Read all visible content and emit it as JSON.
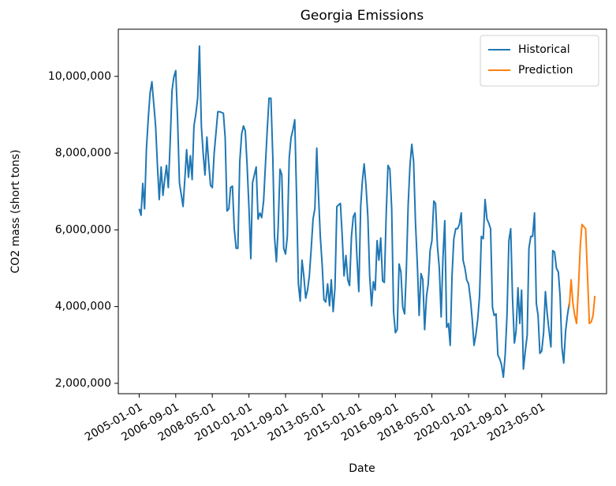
{
  "chart_data": {
    "type": "line",
    "title": "Georgia Emissions",
    "x_label": "Date",
    "y_label": "CO2 mass (short tons)",
    "xlim": [
      "2004-01-20",
      "2026-04-13"
    ],
    "xticks": [
      "2005-01-01",
      "2006-09-01",
      "2008-05-01",
      "2010-01-01",
      "2011-09-01",
      "2013-05-01",
      "2015-01-01",
      "2016-09-01",
      "2018-05-01",
      "2020-01-01",
      "2021-09-01",
      "2023-05-01"
    ],
    "ylim": [
      1730000,
      11230000
    ],
    "yticks": [
      {
        "value": 2000000,
        "label": "2,000,000"
      },
      {
        "value": 4000000,
        "label": "4,000,000"
      },
      {
        "value": 6000000,
        "label": "6,000,000"
      },
      {
        "value": 8000000,
        "label": "8,000,000"
      },
      {
        "value": 10000000,
        "label": "10,000,000"
      }
    ],
    "grid": false,
    "legend": "upper right",
    "series": [
      {
        "name": "Historical",
        "color": "#1f77b4",
        "x": [
          "2005-01-01",
          "2005-02-01",
          "2005-03-01",
          "2005-04-01",
          "2005-05-01",
          "2005-06-01",
          "2005-07-01",
          "2005-08-01",
          "2005-10-01",
          "2005-11-01",
          "2005-12-01",
          "2006-01-01",
          "2006-02-01",
          "2006-03-01",
          "2006-04-01",
          "2006-05-01",
          "2006-06-01",
          "2006-07-01",
          "2006-08-01",
          "2006-09-01",
          "2006-10-01",
          "2006-11-01",
          "2007-01-01",
          "2007-02-01",
          "2007-03-01",
          "2007-04-01",
          "2007-05-01",
          "2007-06-01",
          "2007-07-01",
          "2007-08-01",
          "2007-09-01",
          "2007-10-01",
          "2007-11-01",
          "2007-12-01",
          "2008-01-01",
          "2008-02-01",
          "2008-03-01",
          "2008-04-01",
          "2008-05-01",
          "2008-06-01",
          "2008-08-01",
          "2008-09-01",
          "2008-11-01",
          "2008-12-01",
          "2009-01-01",
          "2009-02-01",
          "2009-03-01",
          "2009-04-01",
          "2009-05-01",
          "2009-06-01",
          "2009-07-01",
          "2009-08-01",
          "2009-09-01",
          "2009-10-01",
          "2009-11-01",
          "2009-12-01",
          "2010-01-01",
          "2010-02-01",
          "2010-03-01",
          "2010-05-01",
          "2010-06-01",
          "2010-07-01",
          "2010-08-01",
          "2010-09-01",
          "2010-10-01",
          "2010-11-01",
          "2010-12-01",
          "2011-01-01",
          "2011-02-01",
          "2011-03-01",
          "2011-04-01",
          "2011-05-01",
          "2011-06-01",
          "2011-07-01",
          "2011-08-01",
          "2011-09-01",
          "2011-10-01",
          "2011-11-01",
          "2011-12-01",
          "2012-01-01",
          "2012-02-01",
          "2012-03-01",
          "2012-04-01",
          "2012-05-01",
          "2012-06-01",
          "2012-07-01",
          "2012-08-01",
          "2012-09-01",
          "2012-10-01",
          "2012-11-01",
          "2012-12-01",
          "2013-01-01",
          "2013-02-01",
          "2013-03-01",
          "2013-04-01",
          "2013-05-01",
          "2013-06-01",
          "2013-07-01",
          "2013-08-01",
          "2013-09-01",
          "2013-10-01",
          "2013-11-01",
          "2013-12-01",
          "2014-01-01",
          "2014-02-01",
          "2014-03-01",
          "2014-04-01",
          "2014-05-01",
          "2014-06-01",
          "2014-07-01",
          "2014-08-01",
          "2014-09-01",
          "2014-10-01",
          "2014-11-01",
          "2014-12-01",
          "2015-01-01",
          "2015-02-01",
          "2015-03-01",
          "2015-04-01",
          "2015-05-01",
          "2015-06-01",
          "2015-07-01",
          "2015-08-01",
          "2015-09-01",
          "2015-10-01",
          "2015-11-01",
          "2015-12-01",
          "2016-01-01",
          "2016-02-01",
          "2016-03-01",
          "2016-04-01",
          "2016-05-01",
          "2016-06-01",
          "2016-07-01",
          "2016-08-01",
          "2016-09-01",
          "2016-10-01",
          "2016-11-01",
          "2016-12-01",
          "2017-01-01",
          "2017-02-01",
          "2017-03-01",
          "2017-04-01",
          "2017-05-01",
          "2017-06-01",
          "2017-07-01",
          "2017-08-01",
          "2017-09-01",
          "2017-10-01",
          "2017-11-01",
          "2017-12-01",
          "2018-01-01",
          "2018-02-01",
          "2018-03-01",
          "2018-04-01",
          "2018-05-01",
          "2018-06-01",
          "2018-07-01",
          "2018-08-01",
          "2018-09-01",
          "2018-10-01",
          "2018-11-01",
          "2018-12-01",
          "2019-01-01",
          "2019-02-01",
          "2019-03-01",
          "2019-04-01",
          "2019-05-01",
          "2019-06-01",
          "2019-07-01",
          "2019-08-01",
          "2019-09-01",
          "2019-10-01",
          "2019-11-01",
          "2019-12-01",
          "2020-01-01",
          "2020-02-01",
          "2020-03-01",
          "2020-04-01",
          "2020-05-01",
          "2020-06-01",
          "2020-07-01",
          "2020-08-01",
          "2020-09-01",
          "2020-10-01",
          "2020-11-01",
          "2020-12-01",
          "2021-01-01",
          "2021-02-01",
          "2021-03-01",
          "2021-04-01",
          "2021-05-01",
          "2021-06-01",
          "2021-07-01",
          "2021-08-01",
          "2021-09-01",
          "2021-10-01",
          "2021-11-01",
          "2021-12-01",
          "2022-01-01",
          "2022-02-01",
          "2022-03-01",
          "2022-04-01",
          "2022-05-01",
          "2022-06-01",
          "2022-07-01",
          "2022-08-01",
          "2022-09-01",
          "2022-10-01",
          "2022-11-01",
          "2022-12-01",
          "2023-01-01",
          "2023-02-01",
          "2023-03-01",
          "2023-04-01",
          "2023-05-01",
          "2023-06-01",
          "2023-07-01",
          "2023-08-01",
          "2023-09-01",
          "2023-10-01",
          "2023-11-01",
          "2023-12-01",
          "2024-01-01",
          "2024-02-01",
          "2024-03-01",
          "2024-04-01",
          "2024-05-01",
          "2024-06-01",
          "2024-07-01",
          "2024-08-01"
        ],
        "values": [
          6550000,
          6380000,
          7210000,
          6550000,
          8090000,
          8910000,
          9570000,
          9860000,
          8710000,
          7680000,
          6790000,
          7640000,
          6900000,
          7310000,
          7680000,
          7100000,
          8300000,
          9630000,
          9980000,
          10150000,
          8910000,
          7230000,
          6610000,
          7370000,
          8090000,
          7370000,
          7930000,
          7310000,
          8710000,
          9020000,
          9430000,
          10790000,
          8710000,
          7990000,
          7430000,
          8420000,
          7780000,
          7160000,
          7100000,
          7990000,
          9080000,
          9080000,
          9040000,
          8400000,
          6490000,
          6550000,
          7100000,
          7140000,
          6030000,
          5520000,
          5520000,
          7780000,
          8500000,
          8710000,
          8580000,
          7680000,
          6550000,
          5250000,
          7230000,
          7640000,
          6280000,
          6440000,
          6320000,
          6750000,
          7680000,
          8600000,
          9430000,
          9430000,
          7880000,
          5830000,
          5170000,
          6030000,
          7580000,
          7430000,
          5520000,
          5370000,
          5830000,
          7880000,
          8400000,
          8600000,
          8870000,
          6960000,
          4590000,
          4140000,
          5210000,
          4800000,
          4220000,
          4430000,
          4800000,
          5520000,
          6280000,
          6550000,
          8130000,
          6960000,
          5830000,
          5110000,
          4180000,
          4120000,
          4590000,
          4020000,
          4700000,
          3870000,
          4490000,
          6610000,
          6650000,
          6690000,
          5830000,
          4800000,
          5330000,
          4700000,
          4550000,
          5830000,
          6340000,
          6440000,
          5310000,
          4390000,
          6610000,
          7270000,
          7720000,
          7160000,
          6340000,
          4800000,
          4020000,
          4650000,
          4430000,
          5720000,
          5210000,
          5790000,
          4670000,
          4630000,
          6440000,
          7680000,
          7580000,
          6550000,
          3870000,
          3320000,
          3400000,
          5110000,
          4900000,
          3980000,
          3810000,
          4900000,
          6650000,
          7680000,
          8230000,
          7780000,
          6180000,
          5110000,
          3770000,
          4860000,
          4700000,
          3400000,
          4280000,
          4590000,
          5460000,
          5720000,
          6750000,
          6690000,
          5580000,
          5000000,
          3730000,
          5270000,
          6240000,
          3460000,
          3560000,
          2990000,
          4800000,
          5770000,
          6030000,
          6030000,
          6140000,
          6440000,
          5210000,
          5000000,
          4700000,
          4590000,
          4180000,
          3670000,
          2990000,
          3260000,
          3670000,
          4280000,
          5830000,
          5770000,
          6790000,
          6280000,
          6180000,
          6030000,
          3980000,
          3770000,
          3810000,
          2740000,
          2640000,
          2490000,
          2160000,
          2740000,
          3770000,
          5720000,
          6030000,
          4220000,
          3050000,
          3360000,
          4490000,
          3560000,
          4430000,
          2370000,
          2840000,
          3260000,
          5520000,
          5830000,
          5830000,
          6440000,
          4080000,
          3770000,
          2780000,
          2840000,
          3320000,
          4390000,
          3810000,
          3360000,
          2950000,
          5460000,
          5420000,
          5000000,
          4900000,
          4280000,
          2950000,
          2530000,
          3360000,
          3770000,
          4080000
        ]
      },
      {
        "name": "Prediction",
        "color": "#ff7f0e",
        "x": [
          "2024-08-01",
          "2024-09-01",
          "2024-10-01",
          "2024-11-01",
          "2024-12-01",
          "2025-01-01",
          "2025-02-01",
          "2025-03-01",
          "2025-04-01",
          "2025-05-01",
          "2025-06-01",
          "2025-07-01",
          "2025-08-01",
          "2025-09-01",
          "2025-10-01"
        ],
        "values": [
          3980000,
          4700000,
          4080000,
          3770000,
          3560000,
          4490000,
          5620000,
          6140000,
          6080000,
          6030000,
          4800000,
          3560000,
          3600000,
          3770000,
          4280000
        ]
      }
    ]
  }
}
